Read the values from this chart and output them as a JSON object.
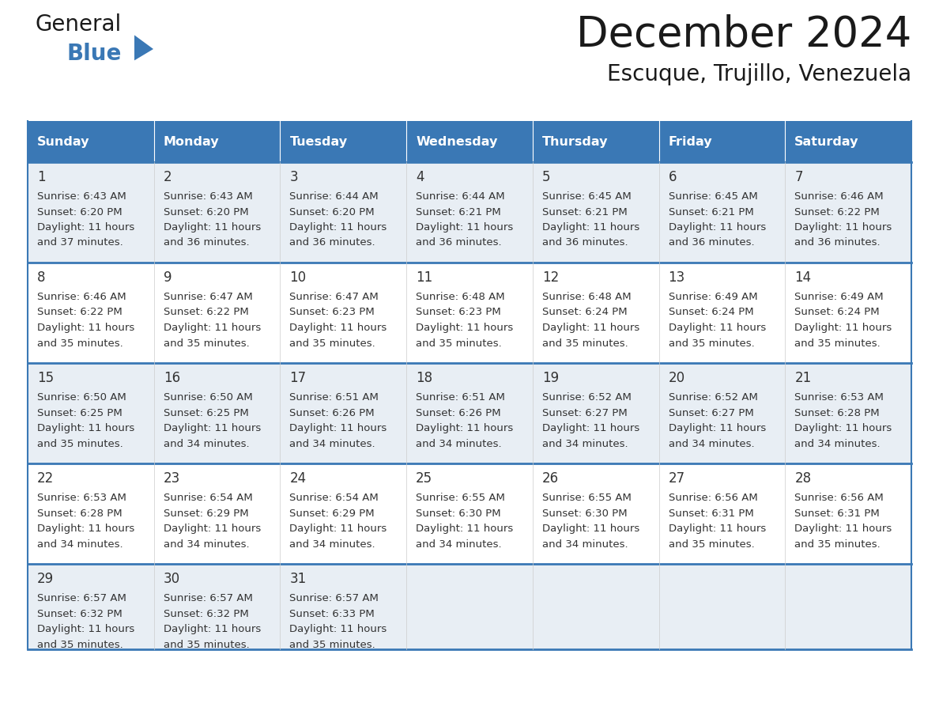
{
  "title": "December 2024",
  "subtitle": "Escuque, Trujillo, Venezuela",
  "header_color": "#3a78b5",
  "header_text_color": "#ffffff",
  "row_bg_light": "#e8eef4",
  "row_bg_white": "#ffffff",
  "border_color": "#3a78b5",
  "text_color": "#333333",
  "days_of_week": [
    "Sunday",
    "Monday",
    "Tuesday",
    "Wednesday",
    "Thursday",
    "Friday",
    "Saturday"
  ],
  "weeks": [
    [
      {
        "day": "1",
        "sunrise": "6:43 AM",
        "sunset": "6:20 PM",
        "daylight_line1": "11 hours",
        "daylight_line2": "and 37 minutes."
      },
      {
        "day": "2",
        "sunrise": "6:43 AM",
        "sunset": "6:20 PM",
        "daylight_line1": "11 hours",
        "daylight_line2": "and 36 minutes."
      },
      {
        "day": "3",
        "sunrise": "6:44 AM",
        "sunset": "6:20 PM",
        "daylight_line1": "11 hours",
        "daylight_line2": "and 36 minutes."
      },
      {
        "day": "4",
        "sunrise": "6:44 AM",
        "sunset": "6:21 PM",
        "daylight_line1": "11 hours",
        "daylight_line2": "and 36 minutes."
      },
      {
        "day": "5",
        "sunrise": "6:45 AM",
        "sunset": "6:21 PM",
        "daylight_line1": "11 hours",
        "daylight_line2": "and 36 minutes."
      },
      {
        "day": "6",
        "sunrise": "6:45 AM",
        "sunset": "6:21 PM",
        "daylight_line1": "11 hours",
        "daylight_line2": "and 36 minutes."
      },
      {
        "day": "7",
        "sunrise": "6:46 AM",
        "sunset": "6:22 PM",
        "daylight_line1": "11 hours",
        "daylight_line2": "and 36 minutes."
      }
    ],
    [
      {
        "day": "8",
        "sunrise": "6:46 AM",
        "sunset": "6:22 PM",
        "daylight_line1": "11 hours",
        "daylight_line2": "and 35 minutes."
      },
      {
        "day": "9",
        "sunrise": "6:47 AM",
        "sunset": "6:22 PM",
        "daylight_line1": "11 hours",
        "daylight_line2": "and 35 minutes."
      },
      {
        "day": "10",
        "sunrise": "6:47 AM",
        "sunset": "6:23 PM",
        "daylight_line1": "11 hours",
        "daylight_line2": "and 35 minutes."
      },
      {
        "day": "11",
        "sunrise": "6:48 AM",
        "sunset": "6:23 PM",
        "daylight_line1": "11 hours",
        "daylight_line2": "and 35 minutes."
      },
      {
        "day": "12",
        "sunrise": "6:48 AM",
        "sunset": "6:24 PM",
        "daylight_line1": "11 hours",
        "daylight_line2": "and 35 minutes."
      },
      {
        "day": "13",
        "sunrise": "6:49 AM",
        "sunset": "6:24 PM",
        "daylight_line1": "11 hours",
        "daylight_line2": "and 35 minutes."
      },
      {
        "day": "14",
        "sunrise": "6:49 AM",
        "sunset": "6:24 PM",
        "daylight_line1": "11 hours",
        "daylight_line2": "and 35 minutes."
      }
    ],
    [
      {
        "day": "15",
        "sunrise": "6:50 AM",
        "sunset": "6:25 PM",
        "daylight_line1": "11 hours",
        "daylight_line2": "and 35 minutes."
      },
      {
        "day": "16",
        "sunrise": "6:50 AM",
        "sunset": "6:25 PM",
        "daylight_line1": "11 hours",
        "daylight_line2": "and 34 minutes."
      },
      {
        "day": "17",
        "sunrise": "6:51 AM",
        "sunset": "6:26 PM",
        "daylight_line1": "11 hours",
        "daylight_line2": "and 34 minutes."
      },
      {
        "day": "18",
        "sunrise": "6:51 AM",
        "sunset": "6:26 PM",
        "daylight_line1": "11 hours",
        "daylight_line2": "and 34 minutes."
      },
      {
        "day": "19",
        "sunrise": "6:52 AM",
        "sunset": "6:27 PM",
        "daylight_line1": "11 hours",
        "daylight_line2": "and 34 minutes."
      },
      {
        "day": "20",
        "sunrise": "6:52 AM",
        "sunset": "6:27 PM",
        "daylight_line1": "11 hours",
        "daylight_line2": "and 34 minutes."
      },
      {
        "day": "21",
        "sunrise": "6:53 AM",
        "sunset": "6:28 PM",
        "daylight_line1": "11 hours",
        "daylight_line2": "and 34 minutes."
      }
    ],
    [
      {
        "day": "22",
        "sunrise": "6:53 AM",
        "sunset": "6:28 PM",
        "daylight_line1": "11 hours",
        "daylight_line2": "and 34 minutes."
      },
      {
        "day": "23",
        "sunrise": "6:54 AM",
        "sunset": "6:29 PM",
        "daylight_line1": "11 hours",
        "daylight_line2": "and 34 minutes."
      },
      {
        "day": "24",
        "sunrise": "6:54 AM",
        "sunset": "6:29 PM",
        "daylight_line1": "11 hours",
        "daylight_line2": "and 34 minutes."
      },
      {
        "day": "25",
        "sunrise": "6:55 AM",
        "sunset": "6:30 PM",
        "daylight_line1": "11 hours",
        "daylight_line2": "and 34 minutes."
      },
      {
        "day": "26",
        "sunrise": "6:55 AM",
        "sunset": "6:30 PM",
        "daylight_line1": "11 hours",
        "daylight_line2": "and 34 minutes."
      },
      {
        "day": "27",
        "sunrise": "6:56 AM",
        "sunset": "6:31 PM",
        "daylight_line1": "11 hours",
        "daylight_line2": "and 35 minutes."
      },
      {
        "day": "28",
        "sunrise": "6:56 AM",
        "sunset": "6:31 PM",
        "daylight_line1": "11 hours",
        "daylight_line2": "and 35 minutes."
      }
    ],
    [
      {
        "day": "29",
        "sunrise": "6:57 AM",
        "sunset": "6:32 PM",
        "daylight_line1": "11 hours",
        "daylight_line2": "and 35 minutes."
      },
      {
        "day": "30",
        "sunrise": "6:57 AM",
        "sunset": "6:32 PM",
        "daylight_line1": "11 hours",
        "daylight_line2": "and 35 minutes."
      },
      {
        "day": "31",
        "sunrise": "6:57 AM",
        "sunset": "6:33 PM",
        "daylight_line1": "11 hours",
        "daylight_line2": "and 35 minutes."
      },
      null,
      null,
      null,
      null
    ]
  ],
  "logo_general_color": "#1a1a1a",
  "logo_blue_color": "#3a78b5",
  "logo_triangle_color": "#3a78b5"
}
